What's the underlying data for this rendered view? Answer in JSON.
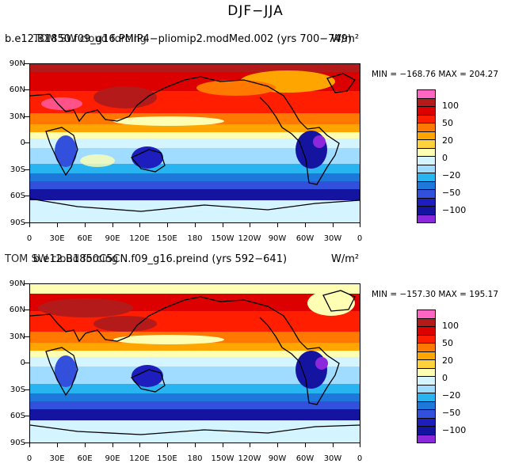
{
  "title": "DJF−JJA",
  "colorbar": {
    "colors": [
      "#ff66c4",
      "#b41a1a",
      "#dc0000",
      "#ff1e00",
      "#ff7800",
      "#ffa500",
      "#ffd23c",
      "#ffffb4",
      "#d4f4ff",
      "#a0dcff",
      "#28b4f0",
      "#1e78dc",
      "#3250dc",
      "#1e1ebe",
      "#1414a0",
      "#8c28dc"
    ],
    "labels": [
      "100",
      "50",
      "20",
      "0",
      "−20",
      "−50",
      "−100"
    ]
  },
  "x_labels": [
    "0",
    "30E",
    "60E",
    "90E",
    "120E",
    "150E",
    "180",
    "150W",
    "120W",
    "90W",
    "60W",
    "30W",
    "0"
  ],
  "y_labels": [
    "90N",
    "60N",
    "30N",
    "0",
    "30S",
    "60S",
    "90S"
  ],
  "panels": [
    {
      "overlap_text": "b.e12.B1850.f09_g16.PMIP4−pliomip2.modMed.002 (yrs 700−749)",
      "case_text": "TOM SW cloud forcing",
      "units": "W/m²",
      "min": "−168.76",
      "max": "204.27",
      "minmax_text": "MIN = −168.76  MAX = 204.27"
    },
    {
      "overlap_text": "b.e12.B1850C5CN.f09_g16.preind (yrs 592−641)",
      "case_text": "TOM SW cloud forcing",
      "units": "W/m²",
      "min": "−157.30",
      "max": "195.17",
      "minmax_text": "MIN = −157.30  MAX = 195.17"
    }
  ]
}
